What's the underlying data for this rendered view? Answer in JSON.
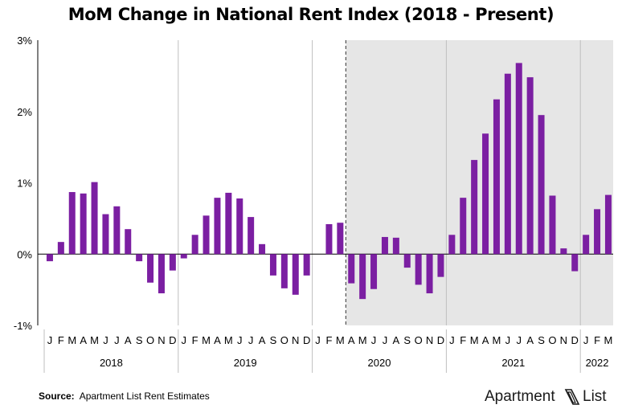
{
  "title": "MoM Change in National Rent Index (2018 - Present)",
  "source_label": "Source:",
  "source_text": "Apartment List Rent Estimates",
  "logo": {
    "word1": "Apartment",
    "word2": "List",
    "icon": "apartment-list-logo-icon"
  },
  "colors": {
    "bar": "#7b1fa2",
    "shade": "#e6e6e6",
    "grid": "#bfbfbf",
    "axis": "#000000"
  },
  "chart_data": {
    "type": "bar",
    "title": "MoM Change in National Rent Index (2018 - Present)",
    "xlabel": "",
    "ylabel": "",
    "ylim": [
      -1,
      3
    ],
    "y_ticks": [
      {
        "value": -1,
        "label": "-1%"
      },
      {
        "value": 0,
        "label": "0%"
      },
      {
        "value": 1,
        "label": "1%"
      },
      {
        "value": 2,
        "label": "2%"
      },
      {
        "value": 3,
        "label": "3%"
      }
    ],
    "grid": false,
    "legend": "none",
    "shaded_region": {
      "from": "2020-04",
      "to": "2022-03",
      "note": "dashed line marks start"
    },
    "years": [
      {
        "label": "2018",
        "months": 12
      },
      {
        "label": "2019",
        "months": 12
      },
      {
        "label": "2020",
        "months": 12
      },
      {
        "label": "2021",
        "months": 12
      },
      {
        "label": "2022",
        "months": 3
      }
    ],
    "categories": [
      "J",
      "F",
      "M",
      "A",
      "M",
      "J",
      "J",
      "A",
      "S",
      "O",
      "N",
      "D",
      "J",
      "F",
      "M",
      "A",
      "M",
      "J",
      "J",
      "A",
      "S",
      "O",
      "N",
      "D",
      "J",
      "F",
      "M",
      "A",
      "M",
      "J",
      "J",
      "A",
      "S",
      "O",
      "N",
      "D",
      "J",
      "F",
      "M",
      "A",
      "M",
      "J",
      "J",
      "A",
      "S",
      "O",
      "N",
      "D",
      "J",
      "F",
      "M"
    ],
    "values": [
      -0.1,
      0.17,
      0.87,
      0.85,
      1.01,
      0.56,
      0.67,
      0.35,
      -0.1,
      -0.4,
      -0.55,
      -0.23,
      -0.06,
      0.27,
      0.54,
      0.79,
      0.86,
      0.78,
      0.52,
      0.14,
      -0.3,
      -0.48,
      -0.57,
      -0.3,
      0,
      0.42,
      0.44,
      -0.41,
      -0.63,
      -0.49,
      0.24,
      0.23,
      -0.19,
      -0.43,
      -0.55,
      -0.32,
      0.27,
      0.79,
      1.32,
      1.69,
      2.17,
      2.53,
      2.68,
      2.48,
      1.95,
      0.82,
      0.08,
      -0.24,
      0.27,
      0.63,
      0.83
    ]
  }
}
